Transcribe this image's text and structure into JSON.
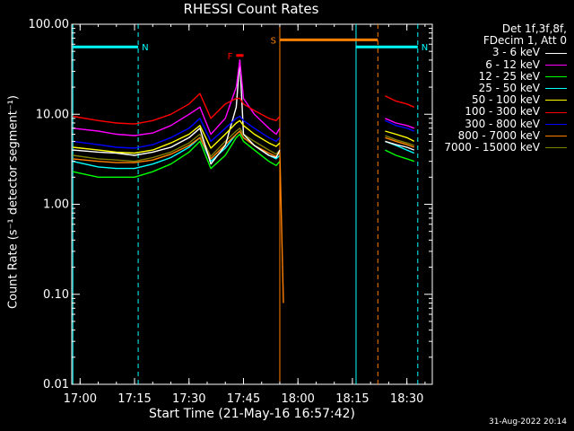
{
  "chart_data": {
    "type": "line",
    "title": "RHESSI Count Rates",
    "xlabel": "Start Time (21-May-16 16:57:42)",
    "ylabel": "Count Rate (s⁻¹ detector segment⁻¹)",
    "yscale": "log",
    "ylim": [
      0.01,
      100
    ],
    "xlim": [
      "16:57:42",
      "18:37:00"
    ],
    "x_ticks": [
      "17:00",
      "17:15",
      "17:30",
      "17:45",
      "18:00",
      "18:15",
      "18:30"
    ],
    "y_ticks": [
      "0.01",
      "0.10",
      "1.00",
      "10.00",
      "100.00"
    ],
    "grid": false,
    "legend": {
      "position": "right",
      "header": [
        "Det 1f,3f,8f,",
        "FDecim 1, Att 0"
      ]
    },
    "series": [
      {
        "name": "3 - 6 keV",
        "color": "#ffffff",
        "x": [
          "16:58",
          "17:05",
          "17:10",
          "17:15",
          "17:20",
          "17:25",
          "17:30",
          "17:33",
          "17:36",
          "17:40",
          "17:43",
          "17:44",
          "17:45",
          "17:48",
          "17:52",
          "17:54",
          "17:55",
          "18:24",
          "18:27",
          "18:30",
          "18:32"
        ],
        "y": [
          4.0,
          3.8,
          3.7,
          3.5,
          3.8,
          4.3,
          5.5,
          7.0,
          2.8,
          4.5,
          12,
          40,
          6.0,
          4.5,
          3.5,
          3.3,
          4.0,
          5.0,
          4.6,
          4.3,
          4.0
        ]
      },
      {
        "name": "6 - 12 keV",
        "color": "#ff00ff",
        "x": [
          "16:58",
          "17:05",
          "17:10",
          "17:15",
          "17:20",
          "17:25",
          "17:30",
          "17:33",
          "17:36",
          "17:40",
          "17:43",
          "17:44",
          "17:45",
          "17:48",
          "17:52",
          "17:54",
          "17:55",
          "18:24",
          "18:27",
          "18:30",
          "18:32"
        ],
        "y": [
          7.0,
          6.5,
          6.0,
          5.8,
          6.2,
          7.5,
          10,
          12,
          6.0,
          9.0,
          20,
          40,
          15,
          10,
          7.0,
          6.0,
          7.0,
          9.0,
          8.0,
          7.5,
          7.0
        ]
      },
      {
        "name": "12 - 25 keV",
        "color": "#00ff00",
        "x": [
          "16:58",
          "17:05",
          "17:10",
          "17:15",
          "17:20",
          "17:25",
          "17:30",
          "17:33",
          "17:36",
          "17:40",
          "17:43",
          "17:44",
          "17:45",
          "17:48",
          "17:52",
          "17:54",
          "17:55",
          "18:24",
          "18:27",
          "18:30",
          "18:32"
        ],
        "y": [
          2.3,
          2.0,
          2.0,
          2.0,
          2.3,
          2.8,
          3.8,
          5.0,
          2.5,
          3.5,
          5.5,
          6.0,
          5.0,
          4.0,
          3.0,
          2.7,
          3.0,
          4.0,
          3.5,
          3.2,
          3.0
        ]
      },
      {
        "name": "25 - 50 keV",
        "color": "#00ffff",
        "x": [
          "16:58",
          "17:05",
          "17:10",
          "17:15",
          "17:20",
          "17:25",
          "17:30",
          "17:33",
          "17:36",
          "17:40",
          "17:43",
          "17:44",
          "17:45",
          "17:48",
          "17:52",
          "17:54",
          "17:55",
          "18:24",
          "18:27",
          "18:30",
          "18:32"
        ],
        "y": [
          3.0,
          2.6,
          2.5,
          2.5,
          2.8,
          3.3,
          4.3,
          5.5,
          3.0,
          4.2,
          6.0,
          6.5,
          5.5,
          4.5,
          3.5,
          3.2,
          3.5,
          5.0,
          4.5,
          4.0,
          3.7
        ]
      },
      {
        "name": "50 - 100 keV",
        "color": "#ffff00",
        "x": [
          "16:58",
          "17:05",
          "17:10",
          "17:15",
          "17:20",
          "17:25",
          "17:30",
          "17:33",
          "17:36",
          "17:40",
          "17:43",
          "17:44",
          "17:45",
          "17:48",
          "17:52",
          "17:54",
          "17:55",
          "18:24",
          "18:27",
          "18:30",
          "18:32"
        ],
        "y": [
          4.3,
          4.0,
          3.8,
          3.7,
          4.0,
          4.8,
          6.0,
          7.5,
          4.2,
          6.0,
          8.0,
          8.5,
          7.5,
          6.0,
          4.8,
          4.4,
          4.8,
          6.5,
          6.0,
          5.5,
          5.0
        ]
      },
      {
        "name": "100 - 300 keV",
        "color": "#ff0000",
        "x": [
          "16:58",
          "17:05",
          "17:10",
          "17:15",
          "17:20",
          "17:25",
          "17:30",
          "17:33",
          "17:36",
          "17:40",
          "17:43",
          "17:44",
          "17:45",
          "17:48",
          "17:52",
          "17:54",
          "17:55",
          "18:24",
          "18:27",
          "18:30",
          "18:32"
        ],
        "y": [
          9.5,
          8.5,
          8.0,
          7.8,
          8.5,
          10,
          13,
          17,
          9.0,
          13,
          15,
          15,
          13,
          11,
          9.0,
          8.5,
          9.5,
          16,
          14,
          13,
          12
        ]
      },
      {
        "name": "300 - 800 keV",
        "color": "#0000ff",
        "x": [
          "16:58",
          "17:05",
          "17:10",
          "17:15",
          "17:20",
          "17:25",
          "17:30",
          "17:33",
          "17:36",
          "17:40",
          "17:43",
          "17:44",
          "17:45",
          "17:48",
          "17:52",
          "17:54",
          "17:55",
          "18:24",
          "18:27",
          "18:30",
          "18:32"
        ],
        "y": [
          5.0,
          4.6,
          4.3,
          4.2,
          4.6,
          5.5,
          7.0,
          9.0,
          5.0,
          7.0,
          9.0,
          9.5,
          8.5,
          7.0,
          5.5,
          5.0,
          5.5,
          8.5,
          7.5,
          7.0,
          6.5
        ]
      },
      {
        "name": "800 - 7000 keV",
        "color": "#ff8000",
        "x": [
          "16:58",
          "17:05",
          "17:10",
          "17:15",
          "17:20",
          "17:25",
          "17:30",
          "17:33",
          "17:36",
          "17:40",
          "17:43",
          "17:44",
          "17:45",
          "17:48",
          "17:52",
          "17:54",
          "17:55",
          "17:56",
          "18:24",
          "18:27",
          "18:30",
          "18:32"
        ],
        "y": [
          3.2,
          3.0,
          2.9,
          2.9,
          3.1,
          3.6,
          4.5,
          5.5,
          3.2,
          4.6,
          6.0,
          6.5,
          5.5,
          4.5,
          3.7,
          3.4,
          3.8,
          0.08,
          5.5,
          5.0,
          4.6,
          4.3
        ]
      },
      {
        "name": "7000 - 15000 keV",
        "color": "#808000",
        "x": [
          "16:58",
          "17:05",
          "17:10",
          "17:15",
          "17:20",
          "17:25",
          "17:30",
          "17:33",
          "17:36",
          "17:40",
          "17:43",
          "17:44",
          "17:45",
          "17:48",
          "17:52",
          "17:54",
          "17:55",
          "18:24",
          "18:27",
          "18:30",
          "18:32"
        ],
        "y": [
          3.5,
          3.2,
          3.1,
          3.0,
          3.3,
          3.8,
          4.8,
          6.0,
          3.4,
          5.0,
          6.5,
          7.0,
          6.0,
          5.0,
          4.0,
          3.6,
          4.0,
          5.8,
          5.2,
          4.8,
          4.5
        ]
      }
    ],
    "annotations": [
      {
        "label": "N",
        "color": "#00ffff",
        "x": [
          "16:58",
          "17:16"
        ],
        "y": 56
      },
      {
        "label": "N",
        "color": "#00ffff",
        "x": [
          "18:16",
          "18:33"
        ],
        "y": 56
      },
      {
        "label": "F",
        "color": "#ff0000",
        "x": [
          "17:43",
          "17:45"
        ],
        "y": 45
      },
      {
        "label": "S",
        "color": "#ff8000",
        "x": [
          "17:55",
          "18:22"
        ],
        "y": 67
      }
    ],
    "vertical_lines": [
      {
        "x": "16:58",
        "color": "#00ffff",
        "style": "solid"
      },
      {
        "x": "17:16",
        "color": "#00ffff",
        "style": "dashed"
      },
      {
        "x": "17:55",
        "color": "#ff8000",
        "style": "solid"
      },
      {
        "x": "18:16",
        "color": "#00ffff",
        "style": "solid"
      },
      {
        "x": "18:22",
        "color": "#ff8000",
        "style": "dashed"
      },
      {
        "x": "18:33",
        "color": "#00ffff",
        "style": "dashed"
      }
    ]
  },
  "footer": {
    "timestamp": "31-Aug-2022 20:14"
  }
}
